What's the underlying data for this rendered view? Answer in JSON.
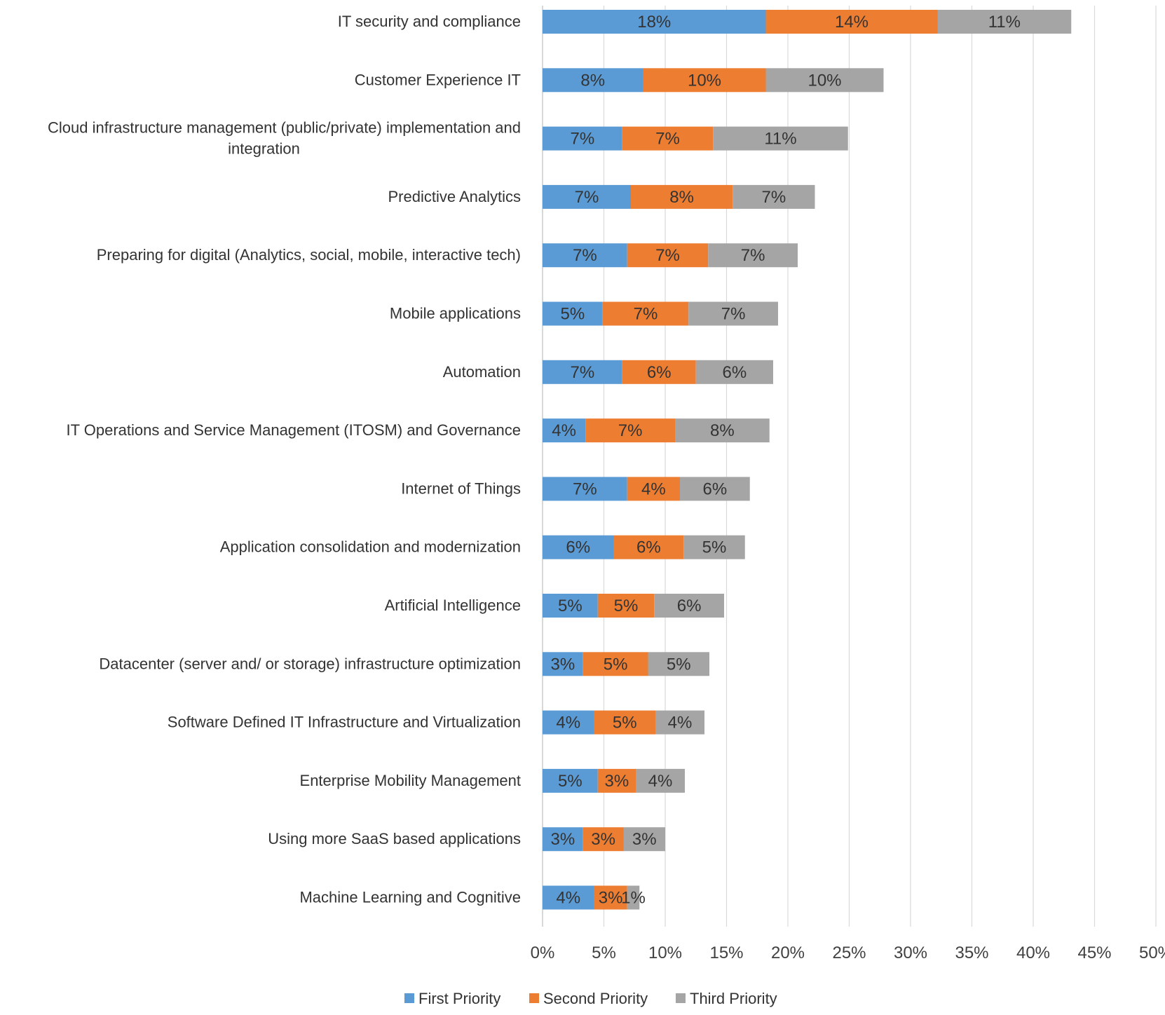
{
  "chart_data": {
    "type": "bar",
    "orientation": "horizontal",
    "stacked": true,
    "categories": [
      "IT security and compliance",
      "Customer Experience IT",
      "Cloud infrastructure management (public/private) implementation and integration",
      "Predictive Analytics",
      "Preparing for digital (Analytics, social, mobile, interactive tech)",
      "Mobile applications",
      "Automation",
      "IT Operations and Service Management (ITOSM) and Governance",
      "Internet of Things",
      "Application consolidation and modernization",
      "Artificial Intelligence",
      "Datacenter (server and/ or storage) infrastructure optimization",
      "Software Defined IT  Infrastructure and Virtualization",
      "Enterprise Mobility Management",
      "Using more SaaS based applications",
      "Machine Learning and Cognitive"
    ],
    "category_lines": [
      [
        "IT security and compliance"
      ],
      [
        "Customer Experience IT"
      ],
      [
        "Cloud infrastructure management (public/private) implementation and",
        "integration"
      ],
      [
        "Predictive Analytics"
      ],
      [
        "Preparing for digital (Analytics, social, mobile, interactive tech)"
      ],
      [
        "Mobile applications"
      ],
      [
        "Automation"
      ],
      [
        "IT Operations and Service Management (ITOSM) and Governance"
      ],
      [
        "Internet of Things"
      ],
      [
        "Application consolidation and modernization"
      ],
      [
        "Artificial Intelligence"
      ],
      [
        "Datacenter (server and/ or storage) infrastructure optimization"
      ],
      [
        "Software Defined IT  Infrastructure and Virtualization"
      ],
      [
        "Enterprise Mobility Management"
      ],
      [
        "Using more SaaS based applications"
      ],
      [
        "Machine Learning and Cognitive"
      ]
    ],
    "series": [
      {
        "name": "First Priority",
        "color": "#5b9bd5",
        "values": [
          18.2,
          8.2,
          6.5,
          7.2,
          6.9,
          4.9,
          6.5,
          3.5,
          6.9,
          5.8,
          4.5,
          3.3,
          4.2,
          4.5,
          3.3,
          4.2
        ],
        "labels": [
          "18%",
          "8%",
          "7%",
          "7%",
          "7%",
          "5%",
          "7%",
          "4%",
          "7%",
          "6%",
          "5%",
          "3%",
          "4%",
          "5%",
          "3%",
          "4%"
        ]
      },
      {
        "name": "Second Priority",
        "color": "#ed7d31",
        "values": [
          14.0,
          10.0,
          7.4,
          8.3,
          6.6,
          7.0,
          6.0,
          7.3,
          4.3,
          5.7,
          4.6,
          5.3,
          5.0,
          3.1,
          3.3,
          2.7
        ],
        "labels": [
          "14%",
          "10%",
          "7%",
          "8%",
          "7%",
          "7%",
          "6%",
          "7%",
          "4%",
          "6%",
          "5%",
          "5%",
          "5%",
          "3%",
          "3%",
          "3%"
        ]
      },
      {
        "name": "Third Priority",
        "color": "#a5a5a5",
        "values": [
          10.9,
          9.6,
          11.0,
          6.7,
          7.3,
          7.3,
          6.3,
          7.7,
          5.7,
          5.0,
          5.7,
          5.0,
          4.0,
          4.0,
          3.4,
          1.0
        ],
        "labels": [
          "11%",
          "10%",
          "11%",
          "7%",
          "7%",
          "7%",
          "6%",
          "8%",
          "6%",
          "5%",
          "6%",
          "5%",
          "4%",
          "4%",
          "3%",
          "1%"
        ]
      }
    ],
    "x_ticks": [
      "0%",
      "5%",
      "10%",
      "15%",
      "20%",
      "25%",
      "30%",
      "35%",
      "40%",
      "45%",
      "50%"
    ],
    "xlim": [
      0,
      50
    ],
    "grid": true,
    "legend": "bottom",
    "title": "",
    "xlabel": "",
    "ylabel": ""
  }
}
